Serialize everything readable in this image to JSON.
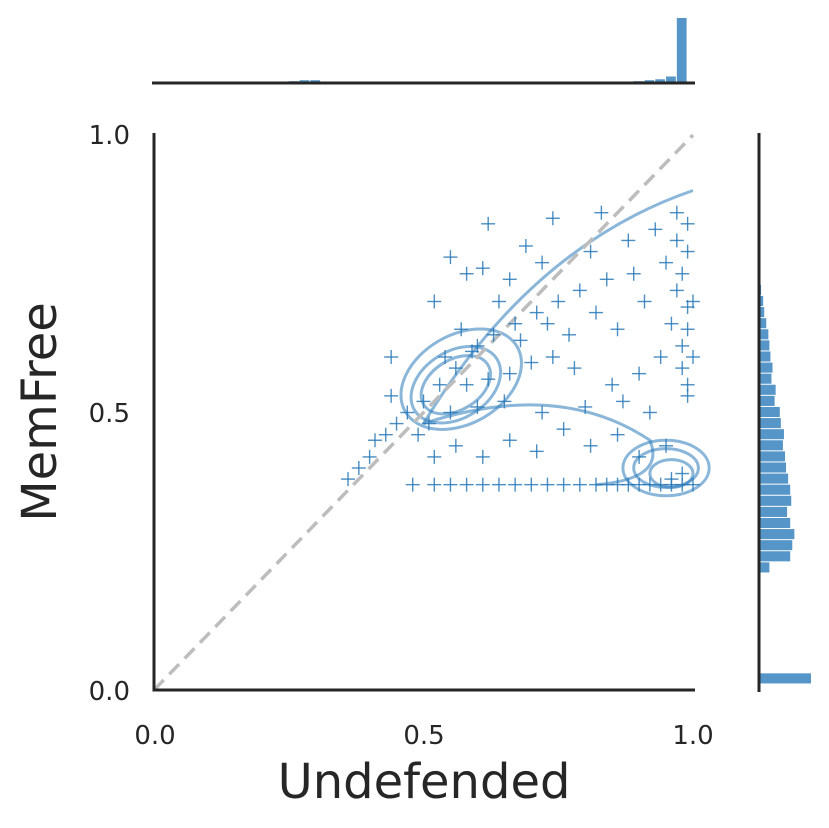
{
  "chart_data": {
    "type": "scatter",
    "subtype": "jointplot",
    "xlabel": "Undefended",
    "ylabel": "MemFree",
    "xlim": [
      0.0,
      1.0
    ],
    "ylim": [
      0.0,
      1.0
    ],
    "x_ticks": [
      "0.0",
      "0.5",
      "1.0"
    ],
    "y_ticks": [
      "0.0",
      "0.5",
      "1.0"
    ],
    "grid": false,
    "legend": "none",
    "marker": "+",
    "color": "#2a7ab9",
    "reference_line": {
      "type": "identity",
      "style": "dashed",
      "color": "#bdbdbd",
      "from": [
        0,
        0
      ],
      "to": [
        1,
        1
      ]
    },
    "scatter_points": [
      [
        0.62,
        0.84
      ],
      [
        0.74,
        0.85
      ],
      [
        0.83,
        0.86
      ],
      [
        0.55,
        0.78
      ],
      [
        0.69,
        0.8
      ],
      [
        0.58,
        0.75
      ],
      [
        0.61,
        0.76
      ],
      [
        0.44,
        0.6
      ],
      [
        0.52,
        0.7
      ],
      [
        0.66,
        0.74
      ],
      [
        0.72,
        0.77
      ],
      [
        0.81,
        0.79
      ],
      [
        0.88,
        0.81
      ],
      [
        0.93,
        0.83
      ],
      [
        0.97,
        0.86
      ],
      [
        0.5,
        0.52
      ],
      [
        0.47,
        0.5
      ],
      [
        0.53,
        0.55
      ],
      [
        0.56,
        0.58
      ],
      [
        0.59,
        0.61
      ],
      [
        0.63,
        0.64
      ],
      [
        0.67,
        0.66
      ],
      [
        0.71,
        0.68
      ],
      [
        0.75,
        0.7
      ],
      [
        0.79,
        0.72
      ],
      [
        0.84,
        0.74
      ],
      [
        0.89,
        0.75
      ],
      [
        0.95,
        0.77
      ],
      [
        0.99,
        0.79
      ],
      [
        0.54,
        0.6
      ],
      [
        0.57,
        0.65
      ],
      [
        0.6,
        0.62
      ],
      [
        0.64,
        0.7
      ],
      [
        0.68,
        0.63
      ],
      [
        0.73,
        0.66
      ],
      [
        0.77,
        0.64
      ],
      [
        0.82,
        0.68
      ],
      [
        0.86,
        0.65
      ],
      [
        0.91,
        0.7
      ],
      [
        0.96,
        0.66
      ],
      [
        0.58,
        0.55
      ],
      [
        0.62,
        0.56
      ],
      [
        0.66,
        0.57
      ],
      [
        0.7,
        0.59
      ],
      [
        0.74,
        0.6
      ],
      [
        0.78,
        0.58
      ],
      [
        0.85,
        0.55
      ],
      [
        0.9,
        0.57
      ],
      [
        0.94,
        0.6
      ],
      [
        0.98,
        0.62
      ],
      [
        0.51,
        0.48
      ],
      [
        0.55,
        0.5
      ],
      [
        0.6,
        0.51
      ],
      [
        0.65,
        0.52
      ],
      [
        0.72,
        0.5
      ],
      [
        0.8,
        0.51
      ],
      [
        0.87,
        0.52
      ],
      [
        0.92,
        0.5
      ],
      [
        0.99,
        0.53
      ],
      [
        0.97,
        0.72
      ],
      [
        0.99,
        0.69
      ],
      [
        0.98,
        0.75
      ],
      [
        1.0,
        0.7
      ],
      [
        0.99,
        0.65
      ],
      [
        0.98,
        0.58
      ],
      [
        0.99,
        0.55
      ],
      [
        1.0,
        0.6
      ],
      [
        0.97,
        0.81
      ],
      [
        0.99,
        0.84
      ],
      [
        0.44,
        0.53
      ],
      [
        0.4,
        0.42
      ],
      [
        0.36,
        0.38
      ],
      [
        0.38,
        0.4
      ],
      [
        0.41,
        0.45
      ],
      [
        0.43,
        0.46
      ],
      [
        0.45,
        0.48
      ],
      [
        0.49,
        0.46
      ],
      [
        0.52,
        0.42
      ],
      [
        0.56,
        0.44
      ],
      [
        0.61,
        0.42
      ],
      [
        0.66,
        0.45
      ],
      [
        0.71,
        0.43
      ],
      [
        0.76,
        0.47
      ],
      [
        0.81,
        0.44
      ],
      [
        0.86,
        0.46
      ],
      [
        0.9,
        0.42
      ],
      [
        0.95,
        0.44
      ],
      [
        0.48,
        0.37
      ],
      [
        0.52,
        0.37
      ],
      [
        0.55,
        0.37
      ],
      [
        0.58,
        0.37
      ],
      [
        0.61,
        0.37
      ],
      [
        0.64,
        0.37
      ],
      [
        0.67,
        0.37
      ],
      [
        0.7,
        0.37
      ],
      [
        0.73,
        0.37
      ],
      [
        0.76,
        0.37
      ],
      [
        0.79,
        0.37
      ],
      [
        0.82,
        0.37
      ],
      [
        0.84,
        0.37
      ],
      [
        0.86,
        0.37
      ],
      [
        0.88,
        0.37
      ],
      [
        0.9,
        0.37
      ],
      [
        0.92,
        0.37
      ],
      [
        0.94,
        0.37
      ],
      [
        0.96,
        0.37
      ],
      [
        0.98,
        0.37
      ],
      [
        1.0,
        0.37
      ],
      [
        0.96,
        0.38
      ],
      [
        0.98,
        0.39
      ]
    ],
    "marginal_x": {
      "bins": [
        0.24,
        0.26,
        0.28,
        0.3,
        0.32,
        0.86,
        0.88,
        0.9,
        0.92,
        0.94,
        0.96,
        0.98
      ],
      "counts": [
        1,
        2,
        3,
        3,
        1,
        1,
        1,
        2,
        3,
        4,
        7,
        70
      ]
    },
    "marginal_y": {
      "bins": [
        0.02,
        0.22,
        0.24,
        0.26,
        0.28,
        0.3,
        0.32,
        0.34,
        0.36,
        0.38,
        0.4,
        0.42,
        0.44,
        0.46,
        0.48,
        0.5,
        0.52,
        0.54,
        0.56,
        0.58,
        0.6,
        0.62,
        0.64,
        0.66,
        0.68,
        0.7,
        0.72,
        0.74,
        0.76
      ],
      "counts": [
        50,
        10,
        30,
        32,
        34,
        30,
        27,
        31,
        30,
        28,
        26,
        25,
        23,
        24,
        21,
        20,
        15,
        16,
        12,
        13,
        11,
        10,
        9,
        7,
        5,
        4,
        2,
        1,
        1
      ]
    }
  }
}
